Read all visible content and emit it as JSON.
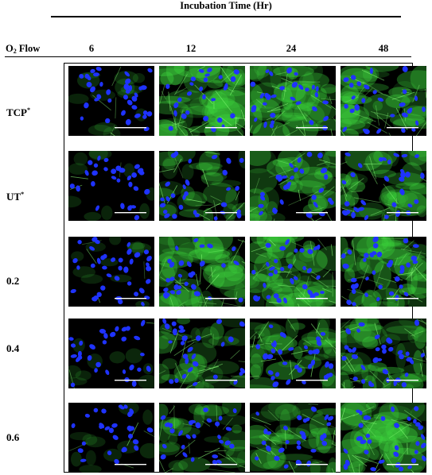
{
  "figure": {
    "column_axis_title": "Incubation Time (Hr)",
    "row_axis_label_prefix": "O",
    "row_axis_label_sub": "2",
    "row_axis_label_suffix": " Flow",
    "columns": [
      "6",
      "12",
      "24",
      "48"
    ],
    "rows": [
      {
        "label": "TCP",
        "mark": "*"
      },
      {
        "label": "UT",
        "mark": "*"
      },
      {
        "label": "0.2",
        "mark": ""
      },
      {
        "label": "0.4",
        "mark": ""
      },
      {
        "label": "0.6",
        "mark": ""
      }
    ],
    "green_density": [
      [
        0.18,
        0.95,
        0.85,
        0.75
      ],
      [
        0.1,
        0.55,
        0.65,
        0.7
      ],
      [
        0.12,
        0.8,
        0.85,
        0.8
      ],
      [
        0.08,
        0.55,
        0.7,
        0.75
      ],
      [
        0.12,
        0.55,
        0.65,
        0.8
      ]
    ],
    "colors": {
      "nucleus": "#1f33ff",
      "cytoskeleton": "#3cd23c",
      "scale_bar": "#ffffff",
      "background": "#000000"
    }
  }
}
